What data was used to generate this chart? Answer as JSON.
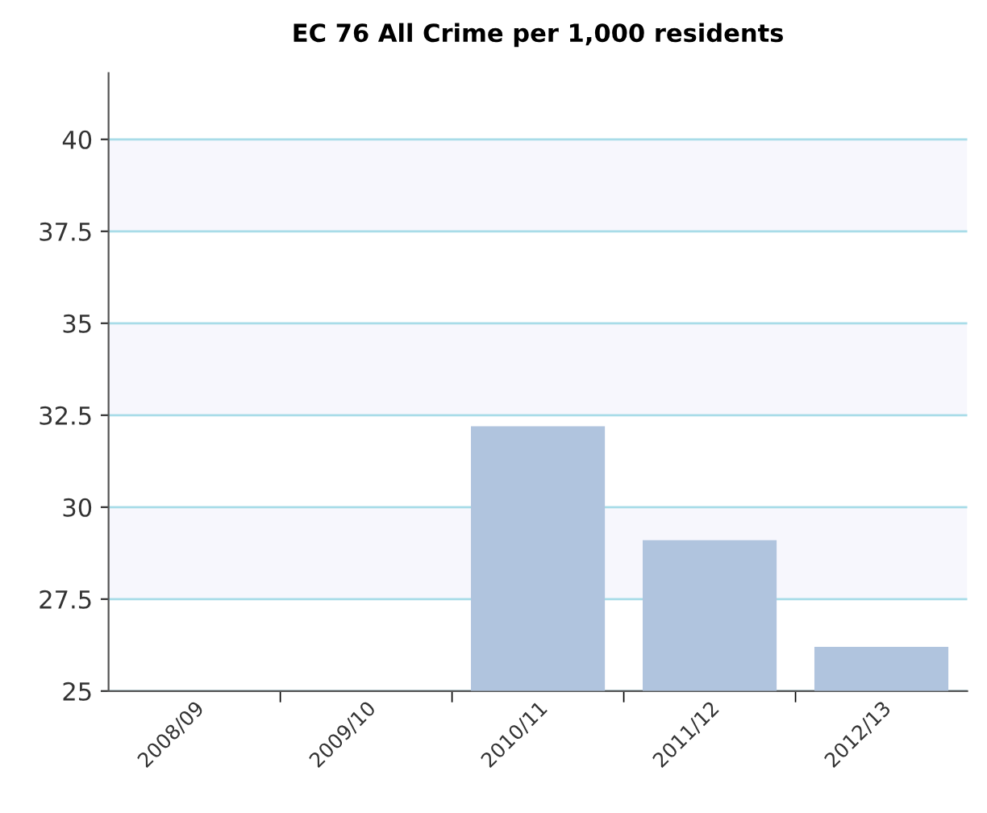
{
  "chart_data": {
    "type": "bar",
    "title": "EC 76 All Crime per 1,000 residents",
    "categories": [
      "2008/09",
      "2009/10",
      "2010/11",
      "2011/12",
      "2012/13"
    ],
    "values": [
      null,
      null,
      32.2,
      29.1,
      26.2
    ],
    "color": "#b0c4de",
    "ylim": [
      25,
      41.8
    ],
    "yticks": [
      25,
      {
        "value": 27.5,
        "label": "27.5"
      },
      30,
      {
        "value": 32.5,
        "label": "32.5"
      },
      35,
      {
        "value": 37.5,
        "label": "37.5"
      },
      40
    ],
    "grid": "y",
    "bands": [
      {
        "axis": "y",
        "from": 27.5,
        "to": 30,
        "color": "#f7f7fd"
      },
      {
        "axis": "y",
        "from": 32.5,
        "to": 35,
        "color": "#f7f7fd"
      },
      {
        "axis": "y",
        "from": 37.5,
        "to": 40,
        "color": "#f7f7fd"
      }
    ]
  }
}
